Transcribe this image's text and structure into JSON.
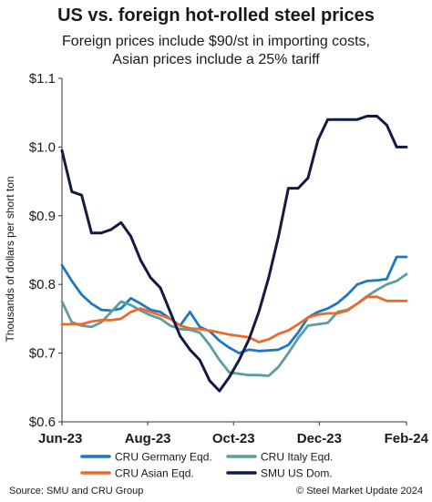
{
  "chart_data": {
    "type": "line",
    "title": "US vs. foreign hot-rolled steel prices",
    "subtitle_lines": [
      "Foreign prices include $90/st in importing costs,",
      "Asian prices include a 25% tariff"
    ],
    "ylabel": "Thousands of dollars per short ton",
    "xlabel": "",
    "ylim": [
      0.6,
      1.1
    ],
    "yticks": [
      0.6,
      0.7,
      0.8,
      0.9,
      1.0,
      1.1
    ],
    "ytick_labels": [
      "$0.6",
      "$0.7",
      "$0.8",
      "$0.9",
      "$1.0",
      "$1.1"
    ],
    "xlim": [
      "2023-06-01",
      "2024-02-01"
    ],
    "xticks": [
      "2023-06-01",
      "2023-08-01",
      "2023-10-01",
      "2023-12-01",
      "2024-02-01"
    ],
    "xtick_labels": [
      "Jun-23",
      "Aug-23",
      "Oct-23",
      "Dec-23",
      "Feb-24"
    ],
    "grid": false,
    "legend_position": "bottom",
    "series": [
      {
        "name": "CRU Germany Eqd.",
        "color": "#1f77c4",
        "x": [
          "2023-06-01",
          "2023-06-08",
          "2023-06-15",
          "2023-06-22",
          "2023-06-29",
          "2023-07-06",
          "2023-07-13",
          "2023-07-20",
          "2023-07-27",
          "2023-08-03",
          "2023-08-10",
          "2023-08-17",
          "2023-08-24",
          "2023-08-31",
          "2023-09-07",
          "2023-09-14",
          "2023-09-21",
          "2023-09-28",
          "2023-10-05",
          "2023-10-12",
          "2023-10-19",
          "2023-10-26",
          "2023-11-02",
          "2023-11-09",
          "2023-11-16",
          "2023-11-23",
          "2023-11-30",
          "2023-12-07",
          "2023-12-14",
          "2023-12-21",
          "2023-12-28",
          "2024-01-04",
          "2024-01-11",
          "2024-01-18",
          "2024-01-25",
          "2024-02-01"
        ],
        "y": [
          0.828,
          0.805,
          0.785,
          0.772,
          0.763,
          0.762,
          0.765,
          0.78,
          0.772,
          0.763,
          0.76,
          0.75,
          0.74,
          0.76,
          0.738,
          0.732,
          0.718,
          0.708,
          0.7,
          0.705,
          0.703,
          0.704,
          0.705,
          0.712,
          0.73,
          0.752,
          0.76,
          0.765,
          0.773,
          0.785,
          0.8,
          0.805,
          0.806,
          0.808,
          0.84,
          0.84
        ]
      },
      {
        "name": "CRU Italy Eqd.",
        "color": "#5b9e9c",
        "x": [
          "2023-06-01",
          "2023-06-08",
          "2023-06-15",
          "2023-06-22",
          "2023-06-29",
          "2023-07-06",
          "2023-07-13",
          "2023-07-20",
          "2023-07-27",
          "2023-08-03",
          "2023-08-10",
          "2023-08-17",
          "2023-08-24",
          "2023-08-31",
          "2023-09-07",
          "2023-09-14",
          "2023-09-21",
          "2023-09-28",
          "2023-10-05",
          "2023-10-12",
          "2023-10-19",
          "2023-10-26",
          "2023-11-02",
          "2023-11-09",
          "2023-11-16",
          "2023-11-23",
          "2023-11-30",
          "2023-12-07",
          "2023-12-14",
          "2023-12-21",
          "2023-12-28",
          "2024-01-04",
          "2024-01-11",
          "2024-01-18",
          "2024-01-25",
          "2024-02-01"
        ],
        "y": [
          0.775,
          0.745,
          0.74,
          0.738,
          0.745,
          0.76,
          0.775,
          0.77,
          0.762,
          0.755,
          0.75,
          0.74,
          0.735,
          0.734,
          0.73,
          0.712,
          0.69,
          0.672,
          0.67,
          0.668,
          0.668,
          0.667,
          0.68,
          0.7,
          0.722,
          0.74,
          0.742,
          0.744,
          0.76,
          0.763,
          0.772,
          0.783,
          0.792,
          0.8,
          0.805,
          0.815
        ]
      },
      {
        "name": "CRU Asian Eqd.",
        "color": "#ec6a2d",
        "x": [
          "2023-06-01",
          "2023-06-08",
          "2023-06-15",
          "2023-06-22",
          "2023-06-29",
          "2023-07-06",
          "2023-07-13",
          "2023-07-20",
          "2023-07-27",
          "2023-08-03",
          "2023-08-10",
          "2023-08-17",
          "2023-08-24",
          "2023-08-31",
          "2023-09-07",
          "2023-09-14",
          "2023-09-21",
          "2023-09-28",
          "2023-10-05",
          "2023-10-12",
          "2023-10-19",
          "2023-10-26",
          "2023-11-02",
          "2023-11-09",
          "2023-11-16",
          "2023-11-23",
          "2023-11-30",
          "2023-12-07",
          "2023-12-14",
          "2023-12-21",
          "2023-12-28",
          "2024-01-04",
          "2024-01-11",
          "2024-01-18",
          "2024-01-25",
          "2024-02-01"
        ],
        "y": [
          0.742,
          0.742,
          0.742,
          0.746,
          0.748,
          0.748,
          0.75,
          0.76,
          0.765,
          0.76,
          0.755,
          0.75,
          0.74,
          0.736,
          0.735,
          0.733,
          0.73,
          0.727,
          0.725,
          0.723,
          0.716,
          0.72,
          0.728,
          0.733,
          0.742,
          0.752,
          0.756,
          0.758,
          0.758,
          0.762,
          0.772,
          0.782,
          0.782,
          0.776,
          0.776,
          0.776
        ]
      },
      {
        "name": "SMU US Dom.",
        "color": "#131b45",
        "x": [
          "2023-06-01",
          "2023-06-08",
          "2023-06-15",
          "2023-06-22",
          "2023-06-29",
          "2023-07-06",
          "2023-07-13",
          "2023-07-20",
          "2023-07-27",
          "2023-08-03",
          "2023-08-10",
          "2023-08-17",
          "2023-08-24",
          "2023-08-31",
          "2023-09-07",
          "2023-09-14",
          "2023-09-21",
          "2023-09-28",
          "2023-10-05",
          "2023-10-12",
          "2023-10-19",
          "2023-10-26",
          "2023-11-02",
          "2023-11-09",
          "2023-11-16",
          "2023-11-23",
          "2023-11-30",
          "2023-12-07",
          "2023-12-14",
          "2023-12-21",
          "2023-12-28",
          "2024-01-04",
          "2024-01-11",
          "2024-01-18",
          "2024-01-25",
          "2024-02-01"
        ],
        "y": [
          0.995,
          0.935,
          0.93,
          0.875,
          0.875,
          0.88,
          0.89,
          0.87,
          0.835,
          0.81,
          0.795,
          0.76,
          0.725,
          0.705,
          0.69,
          0.66,
          0.645,
          0.665,
          0.69,
          0.72,
          0.76,
          0.81,
          0.87,
          0.94,
          0.94,
          0.955,
          1.01,
          1.04,
          1.04,
          1.04,
          1.04,
          1.045,
          1.045,
          1.032,
          1.0,
          1.0
        ]
      }
    ]
  },
  "footer": {
    "source": "Source: SMU and CRU Group",
    "copyright": "© Steel Market Update 2024"
  }
}
